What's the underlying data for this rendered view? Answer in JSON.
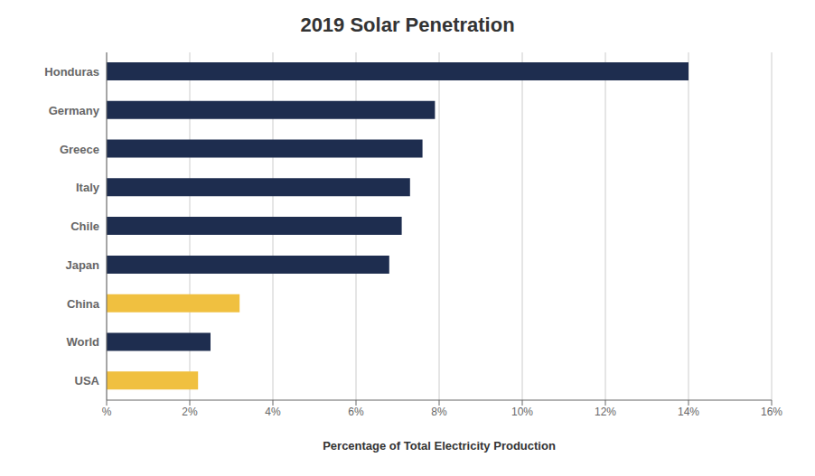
{
  "chart_data": {
    "type": "bar",
    "orientation": "horizontal",
    "title": "2019 Solar Penetration",
    "xlabel": "Percentage of Total Electricity Production",
    "categories": [
      "Honduras",
      "Germany",
      "Greece",
      "Italy",
      "Chile",
      "Japan",
      "China",
      "World",
      "USA"
    ],
    "values": [
      14.0,
      7.9,
      7.6,
      7.3,
      7.1,
      6.8,
      3.2,
      2.5,
      2.2
    ],
    "colors": [
      "#1e2d4f",
      "#1e2d4f",
      "#1e2d4f",
      "#1e2d4f",
      "#1e2d4f",
      "#1e2d4f",
      "#f0c040",
      "#1e2d4f",
      "#f0c040"
    ],
    "xlim": [
      0,
      16
    ],
    "xticks": [
      {
        "value": 0,
        "label": "%"
      },
      {
        "value": 2,
        "label": "2%"
      },
      {
        "value": 4,
        "label": "4%"
      },
      {
        "value": 6,
        "label": "6%"
      },
      {
        "value": 8,
        "label": "8%"
      },
      {
        "value": 10,
        "label": "10%"
      },
      {
        "value": 12,
        "label": "12%"
      },
      {
        "value": 14,
        "label": "14%"
      },
      {
        "value": 16,
        "label": "16%"
      }
    ],
    "grid": true
  }
}
